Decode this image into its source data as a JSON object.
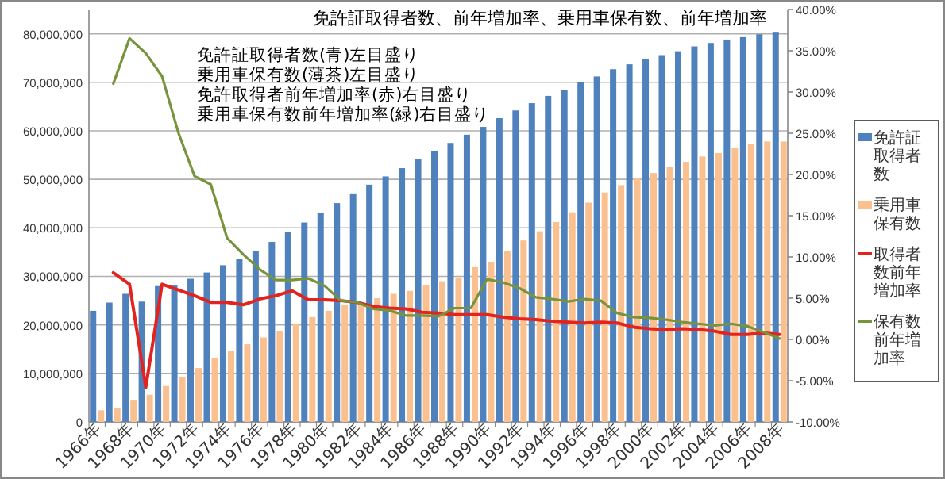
{
  "chart_data": {
    "type": "bar",
    "title": "免許証取得者数、前年増加率、乗用車保有数、前年増加率",
    "annotations": [
      "免許証取得者数(青)左目盛り",
      "乗用車保有数(薄茶)左目盛り",
      "免許取得者前年増加率(赤)右目盛り",
      "乗用車保有数前年増加率(緑)右目盛り"
    ],
    "categories": [
      "1966年",
      null,
      "1968年",
      null,
      "1970年",
      null,
      "1972年",
      null,
      "1974年",
      null,
      "1976年",
      null,
      "1978年",
      null,
      "1980年",
      null,
      "1982年",
      null,
      "1984年",
      null,
      "1986年",
      null,
      "1988年",
      null,
      "1990年",
      null,
      "1992年",
      null,
      "1994年",
      null,
      "1996年",
      null,
      "1998年",
      null,
      "2000年",
      null,
      "2002年",
      null,
      "2004年",
      null,
      "2006年",
      null,
      "2008年"
    ],
    "series": [
      {
        "name": "免許証取得者数",
        "color": "#4f81bd",
        "values": [
          22900000,
          24600000,
          26400000,
          24800000,
          28000000,
          28100000,
          29500000,
          30800000,
          32300000,
          33600000,
          35200000,
          37100000,
          39200000,
          41100000,
          43000000,
          45100000,
          47100000,
          48900000,
          50600000,
          52300000,
          54100000,
          55800000,
          57500000,
          59200000,
          60800000,
          62600000,
          64200000,
          65700000,
          67200000,
          68400000,
          70000000,
          71200000,
          72700000,
          73700000,
          74700000,
          75600000,
          76400000,
          77400000,
          78100000,
          78800000,
          79300000,
          79900000,
          80400000
        ]
      },
      {
        "name": "乗用車保有数",
        "color": "#fac090",
        "values": [
          2400000,
          2900000,
          4400000,
          5600000,
          7400000,
          9200000,
          11100000,
          13100000,
          14600000,
          16000000,
          17400000,
          18700000,
          20300000,
          21600000,
          22900000,
          24200000,
          24400000,
          25500000,
          26400000,
          27000000,
          28100000,
          29000000,
          29800000,
          31900000,
          33000000,
          35200000,
          37400000,
          39300000,
          41200000,
          43200000,
          45200000,
          47300000,
          48800000,
          50200000,
          51300000,
          52500000,
          53600000,
          54700000,
          55400000,
          56500000,
          57200000,
          57800000,
          57800000
        ]
      },
      {
        "name": "取得者数前年増加率",
        "type": "line",
        "axis": "y2",
        "color": "#e3231e",
        "values": [
          null,
          8.1,
          6.7,
          -5.8,
          6.7,
          6.0,
          5.3,
          4.5,
          4.5,
          4.2,
          4.9,
          5.3,
          5.9,
          4.8,
          4.8,
          4.7,
          4.5,
          4.0,
          3.8,
          3.7,
          3.3,
          3.2,
          3.0,
          3.0,
          3.0,
          2.7,
          2.5,
          2.4,
          2.2,
          2.1,
          2.0,
          2.1,
          2.0,
          1.5,
          1.3,
          1.2,
          1.3,
          1.2,
          1.0,
          0.6,
          0.6,
          0.8,
          0.6
        ]
      },
      {
        "name": "保有数前年増加率",
        "type": "line",
        "axis": "y2",
        "color": "#77933c",
        "values": [
          null,
          31.0,
          36.5,
          34.7,
          31.9,
          25.1,
          19.8,
          18.8,
          12.3,
          10.3,
          8.5,
          7.2,
          7.2,
          7.4,
          6.5,
          4.7,
          4.5,
          3.7,
          3.5,
          2.9,
          2.9,
          2.8,
          3.8,
          3.8,
          7.3,
          6.9,
          6.2,
          5.1,
          4.9,
          4.6,
          4.9,
          4.7,
          3.2,
          2.7,
          2.6,
          2.4,
          2.1,
          1.9,
          1.7,
          1.9,
          1.6,
          0.9,
          0.1
        ]
      }
    ],
    "ylim": [
      0,
      85000000
    ],
    "yticks": [
      0,
      {
        "value": 10000000,
        "label": "10,000,000"
      },
      {
        "value": 20000000,
        "label": "20,000,000"
      },
      {
        "value": 30000000,
        "label": "30,000,000"
      },
      {
        "value": 40000000,
        "label": "40,000,000"
      },
      {
        "value": 50000000,
        "label": "50,000,000"
      },
      {
        "value": 60000000,
        "label": "60,000,000"
      },
      {
        "value": 70000000,
        "label": "70,000,000"
      },
      {
        "value": 80000000,
        "label": "80,000,000"
      }
    ],
    "y2lim": [
      -10,
      40
    ],
    "y2ticks": [
      {
        "value": -10,
        "label": "-10.00%"
      },
      {
        "value": -5,
        "label": "-5.00%"
      },
      {
        "value": 0,
        "label": "0.00%"
      },
      {
        "value": 5,
        "label": "5.00%"
      },
      {
        "value": 10,
        "label": "10.00%"
      },
      {
        "value": 15,
        "label": "15.00%"
      },
      {
        "value": 20,
        "label": "20.00%"
      },
      {
        "value": 25,
        "label": "25.00%"
      },
      {
        "value": 30,
        "label": "30.00%"
      },
      {
        "value": 35,
        "label": "35.00%"
      },
      {
        "value": 40,
        "label": "40.00%"
      }
    ],
    "grid": "y",
    "legend": "right"
  }
}
